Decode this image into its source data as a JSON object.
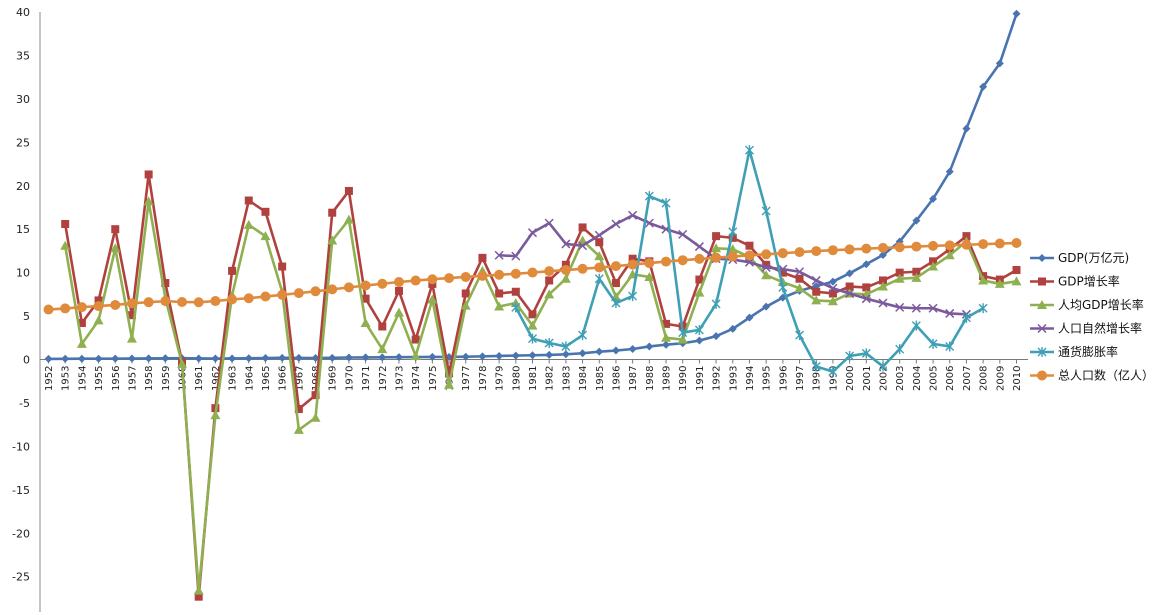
{
  "chart_data": {
    "type": "line",
    "title": "",
    "xlabel": "",
    "ylabel": "",
    "ylim": [
      -30,
      40
    ],
    "yticks": [
      -25,
      -20,
      -15,
      -10,
      -5,
      0,
      5,
      10,
      15,
      20,
      25,
      30,
      35,
      40
    ],
    "grid": true,
    "legend_position": "right",
    "categories": [
      "1952",
      "1953",
      "1954",
      "1955",
      "1956",
      "1957",
      "1958",
      "1959",
      "1960",
      "1961",
      "1962",
      "1963",
      "1964",
      "1965",
      "1966",
      "1967",
      "1968",
      "1969",
      "1970",
      "1971",
      "1972",
      "1973",
      "1974",
      "1975",
      "1976",
      "1977",
      "1978",
      "1979",
      "1980",
      "1981",
      "1982",
      "1983",
      "1984",
      "1985",
      "1986",
      "1987",
      "1988",
      "1989",
      "1990",
      "1991",
      "1992",
      "1993",
      "1994",
      "1995",
      "1996",
      "1997",
      "1998",
      "1999",
      "2000",
      "2001",
      "2002",
      "2003",
      "2004",
      "2005",
      "2006",
      "2007",
      "2008",
      "2009",
      "2010"
    ],
    "series": [
      {
        "name": "GDP(万亿元)",
        "color": "#4a74b0",
        "marker": "diamond",
        "values": [
          0.07,
          0.08,
          0.09,
          0.09,
          0.1,
          0.11,
          0.13,
          0.14,
          0.15,
          0.12,
          0.11,
          0.12,
          0.14,
          0.17,
          0.19,
          0.18,
          0.17,
          0.19,
          0.23,
          0.24,
          0.25,
          0.27,
          0.28,
          0.3,
          0.29,
          0.32,
          0.36,
          0.41,
          0.45,
          0.49,
          0.53,
          0.6,
          0.72,
          0.9,
          1.03,
          1.21,
          1.5,
          1.7,
          1.87,
          2.18,
          2.69,
          3.53,
          4.82,
          6.08,
          7.12,
          7.9,
          8.44,
          8.97,
          9.92,
          10.97,
          12.03,
          13.58,
          15.99,
          18.49,
          21.63,
          26.58,
          31.4,
          34.09,
          39.8
        ]
      },
      {
        "name": "GDP增长率",
        "color": "#b0413e",
        "marker": "square",
        "values": [
          null,
          15.6,
          4.2,
          6.8,
          15,
          5.1,
          21.3,
          8.8,
          -0.3,
          -27.3,
          -5.6,
          10.2,
          18.3,
          17,
          10.7,
          -5.7,
          -4.1,
          16.9,
          19.4,
          7,
          3.8,
          7.9,
          2.3,
          8.7,
          -1.6,
          7.6,
          11.7,
          7.6,
          7.8,
          5.2,
          9.1,
          10.9,
          15.2,
          13.5,
          8.8,
          11.6,
          11.3,
          4.1,
          3.8,
          9.2,
          14.2,
          14,
          13.1,
          10.9,
          10,
          9.3,
          7.8,
          7.6,
          8.4,
          8.3,
          9.1,
          10,
          10.1,
          11.3,
          12.7,
          14.2,
          9.6,
          9.2,
          10.3
        ]
      },
      {
        "name": "人均GDP增长率",
        "color": "#8fb050",
        "marker": "triangle",
        "values": [
          null,
          13.1,
          1.8,
          4.5,
          12.8,
          2.4,
          18.2,
          7.1,
          -0.5,
          -26.6,
          -6.4,
          7.4,
          15.5,
          14.2,
          7.8,
          -8.1,
          -6.7,
          13.7,
          16.1,
          4.2,
          1.2,
          5.4,
          0.4,
          6.9,
          -2.9,
          6.2,
          10.2,
          6.1,
          6.5,
          3.9,
          7.5,
          9.3,
          13.7,
          11.9,
          7.2,
          9.8,
          9.5,
          2.5,
          2.3,
          7.7,
          12.8,
          12.7,
          11.8,
          9.7,
          8.9,
          8.2,
          6.8,
          6.7,
          7.6,
          7.5,
          8.4,
          9.3,
          9.4,
          10.7,
          12,
          13.6,
          9.1,
          8.7,
          9
        ]
      },
      {
        "name": "人口自然增长率",
        "color": "#7a5a9c",
        "marker": "x",
        "values": [
          null,
          null,
          null,
          null,
          null,
          null,
          null,
          null,
          null,
          null,
          null,
          null,
          null,
          null,
          null,
          null,
          null,
          null,
          null,
          null,
          null,
          null,
          null,
          null,
          null,
          null,
          null,
          12,
          11.9,
          14.6,
          15.7,
          13.3,
          13.1,
          14.3,
          15.6,
          16.6,
          15.7,
          15,
          14.4,
          13,
          11.6,
          11.5,
          11.2,
          10.6,
          10.4,
          10.1,
          9.1,
          8.2,
          7.6,
          7,
          6.5,
          6,
          5.9,
          5.9,
          5.3,
          5.2,
          null,
          null,
          null
        ]
      },
      {
        "name": "通货膨胀率",
        "color": "#3f9fb5",
        "marker": "asterisk",
        "values": [
          null,
          null,
          null,
          null,
          null,
          null,
          null,
          null,
          null,
          null,
          null,
          null,
          null,
          null,
          null,
          null,
          null,
          null,
          null,
          null,
          null,
          null,
          null,
          null,
          null,
          null,
          null,
          null,
          6,
          2.4,
          1.9,
          1.5,
          2.8,
          9.3,
          6.5,
          7.3,
          18.8,
          18,
          3.1,
          3.4,
          6.4,
          14.7,
          24.1,
          17.1,
          8.3,
          2.8,
          -0.8,
          -1.4,
          0.4,
          0.7,
          -0.8,
          1.2,
          3.9,
          1.8,
          1.5,
          4.8,
          5.9,
          null,
          null
        ]
      },
      {
        "name": "总人口数（亿人）",
        "color": "#e08a3c",
        "marker": "circle",
        "values": [
          5.75,
          5.88,
          6.03,
          6.15,
          6.28,
          6.47,
          6.6,
          6.72,
          6.62,
          6.59,
          6.73,
          6.92,
          7.05,
          7.25,
          7.45,
          7.64,
          7.85,
          8.07,
          8.3,
          8.52,
          8.72,
          8.92,
          9.09,
          9.24,
          9.37,
          9.5,
          9.63,
          9.75,
          9.87,
          10.01,
          10.17,
          10.3,
          10.44,
          10.59,
          10.75,
          10.93,
          11.1,
          11.27,
          11.43,
          11.58,
          11.72,
          11.85,
          11.99,
          12.11,
          12.24,
          12.36,
          12.48,
          12.58,
          12.67,
          12.76,
          12.85,
          12.92,
          13,
          13.08,
          13.14,
          13.21,
          13.28,
          13.35,
          13.41
        ]
      }
    ]
  }
}
